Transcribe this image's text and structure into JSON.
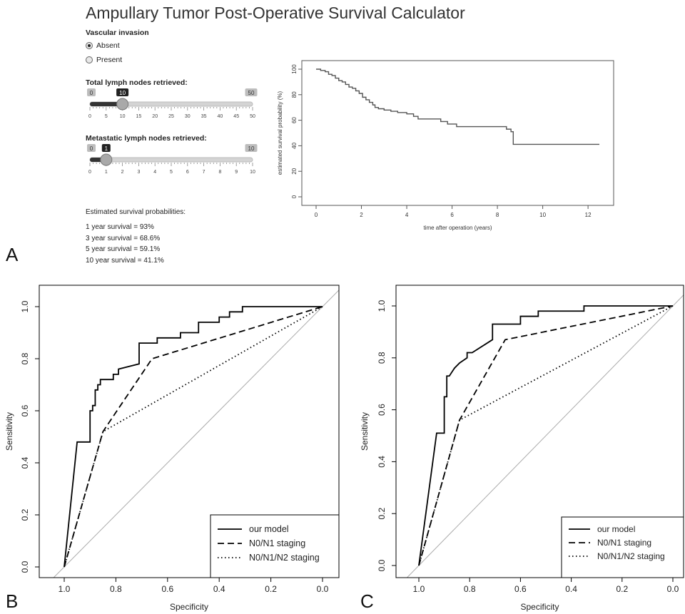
{
  "app": {
    "title": "Ampullary Tumor Post-Operative Survival Calculator"
  },
  "panel_letters": [
    "A",
    "B",
    "C"
  ],
  "controls": {
    "vascular": {
      "label": "Vascular invasion",
      "options": [
        {
          "label": "Absent",
          "selected": true
        },
        {
          "label": "Present",
          "selected": false
        }
      ]
    },
    "total_nodes": {
      "label": "Total lymph nodes retrieved:",
      "min": 0,
      "max": 50,
      "value": 10,
      "min_label": "0",
      "max_label": "50",
      "value_label": "10",
      "ticks": [
        "0",
        "5",
        "10",
        "15",
        "20",
        "25",
        "30",
        "35",
        "40",
        "45",
        "50"
      ]
    },
    "metastatic_nodes": {
      "label": "Metastatic lymph nodes retrieved:",
      "min": 0,
      "max": 10,
      "value": 1,
      "min_label": "0",
      "max_label": "10",
      "value_label": "1",
      "ticks": [
        "0",
        "1",
        "2",
        "3",
        "4",
        "5",
        "6",
        "7",
        "8",
        "9",
        "10"
      ]
    }
  },
  "results": {
    "heading": "Estimated survival probabilities:",
    "lines": [
      "1 year survival = 93%",
      "3 year survival = 68.6%",
      "5 year survival = 59.1%",
      "10 year survival = 41.1%"
    ]
  },
  "chart_data": [
    {
      "type": "line",
      "xlabel": "time after operation (years)",
      "ylabel": "estimated survival probability (%)",
      "xlim": [
        0,
        12.5
      ],
      "ylim": [
        0,
        100
      ],
      "xticks": [
        0,
        2,
        4,
        6,
        8,
        10,
        12
      ],
      "yticks": [
        0,
        20,
        40,
        60,
        80,
        100
      ],
      "series": [
        {
          "step": true,
          "x": [
            0,
            0.2,
            0.4,
            0.55,
            0.7,
            0.85,
            1.0,
            1.15,
            1.3,
            1.45,
            1.6,
            1.75,
            1.9,
            2.05,
            2.2,
            2.35,
            2.5,
            2.6,
            2.75,
            3.0,
            3.3,
            3.6,
            4.0,
            4.3,
            4.5,
            5.5,
            5.8,
            6.2,
            8.4,
            8.6,
            8.7,
            12.5
          ],
          "y": [
            100,
            99,
            98,
            96,
            95,
            93,
            91,
            90,
            88,
            86,
            85,
            83,
            81,
            78,
            76,
            74,
            72,
            70,
            69,
            68,
            67,
            66,
            65,
            63,
            61,
            59,
            57,
            55,
            53,
            51,
            41.1,
            41.1
          ],
          "color": "#555555"
        }
      ]
    },
    {
      "type": "line",
      "xlabel": "Specificity",
      "ylabel": "Sensitivity",
      "xlim": [
        1.0,
        0.0
      ],
      "ylim": [
        0,
        1
      ],
      "xticks": [
        1.0,
        0.8,
        0.6,
        0.4,
        0.2,
        0.0
      ],
      "yticks": [
        0.0,
        0.2,
        0.4,
        0.6,
        0.8,
        1.0
      ],
      "legend": "bottom-right",
      "series": [
        {
          "name": "our model",
          "dash": "solid",
          "x": [
            1.0,
            0.95,
            0.93,
            0.93,
            0.9,
            0.9,
            0.89,
            0.89,
            0.88,
            0.88,
            0.87,
            0.87,
            0.86,
            0.86,
            0.84,
            0.84,
            0.81,
            0.81,
            0.79,
            0.79,
            0.71,
            0.71,
            0.64,
            0.64,
            0.6,
            0.6,
            0.55,
            0.55,
            0.48,
            0.48,
            0.4,
            0.4,
            0.36,
            0.36,
            0.31,
            0.31,
            0.0
          ],
          "y": [
            0.0,
            0.48,
            0.48,
            0.48,
            0.48,
            0.6,
            0.6,
            0.62,
            0.62,
            0.68,
            0.68,
            0.7,
            0.7,
            0.72,
            0.72,
            0.72,
            0.72,
            0.74,
            0.74,
            0.76,
            0.78,
            0.86,
            0.86,
            0.88,
            0.88,
            0.88,
            0.88,
            0.9,
            0.9,
            0.94,
            0.94,
            0.96,
            0.96,
            0.98,
            0.98,
            1.0,
            1.0
          ]
        },
        {
          "name": "N0/N1 staging",
          "dash": "dashed",
          "x": [
            1.0,
            0.85,
            0.66,
            0.0
          ],
          "y": [
            0.0,
            0.52,
            0.8,
            1.0
          ]
        },
        {
          "name": "N0/N1/N2 staging",
          "dash": "dotted",
          "x": [
            1.0,
            0.85,
            0.0
          ],
          "y": [
            0.0,
            0.52,
            1.0
          ]
        }
      ]
    },
    {
      "type": "line",
      "xlabel": "Specificity",
      "ylabel": "Sensitivity",
      "xlim": [
        1.0,
        0.0
      ],
      "ylim": [
        0,
        1
      ],
      "xticks": [
        1.0,
        0.8,
        0.6,
        0.4,
        0.2,
        0.0
      ],
      "yticks": [
        0.0,
        0.2,
        0.4,
        0.6,
        0.8,
        1.0
      ],
      "legend": "bottom-right",
      "series": [
        {
          "name": "our model",
          "dash": "solid",
          "x": [
            1.0,
            0.93,
            0.93,
            0.9,
            0.9,
            0.89,
            0.89,
            0.88,
            0.88,
            0.86,
            0.86,
            0.84,
            0.84,
            0.81,
            0.81,
            0.79,
            0.79,
            0.71,
            0.71,
            0.6,
            0.6,
            0.53,
            0.53,
            0.35,
            0.35,
            0.0
          ],
          "y": [
            0.0,
            0.51,
            0.51,
            0.51,
            0.65,
            0.65,
            0.73,
            0.73,
            0.73,
            0.76,
            0.76,
            0.78,
            0.78,
            0.8,
            0.82,
            0.82,
            0.82,
            0.87,
            0.93,
            0.93,
            0.96,
            0.96,
            0.98,
            0.98,
            1.0,
            1.0
          ]
        },
        {
          "name": "N0/N1 staging",
          "dash": "dashed",
          "x": [
            1.0,
            0.84,
            0.66,
            0.0
          ],
          "y": [
            0.0,
            0.56,
            0.87,
            1.0
          ]
        },
        {
          "name": "N0/N1/N2 staging",
          "dash": "dotted",
          "x": [
            1.0,
            0.84,
            0.0
          ],
          "y": [
            0.0,
            0.56,
            1.0
          ]
        }
      ]
    }
  ]
}
